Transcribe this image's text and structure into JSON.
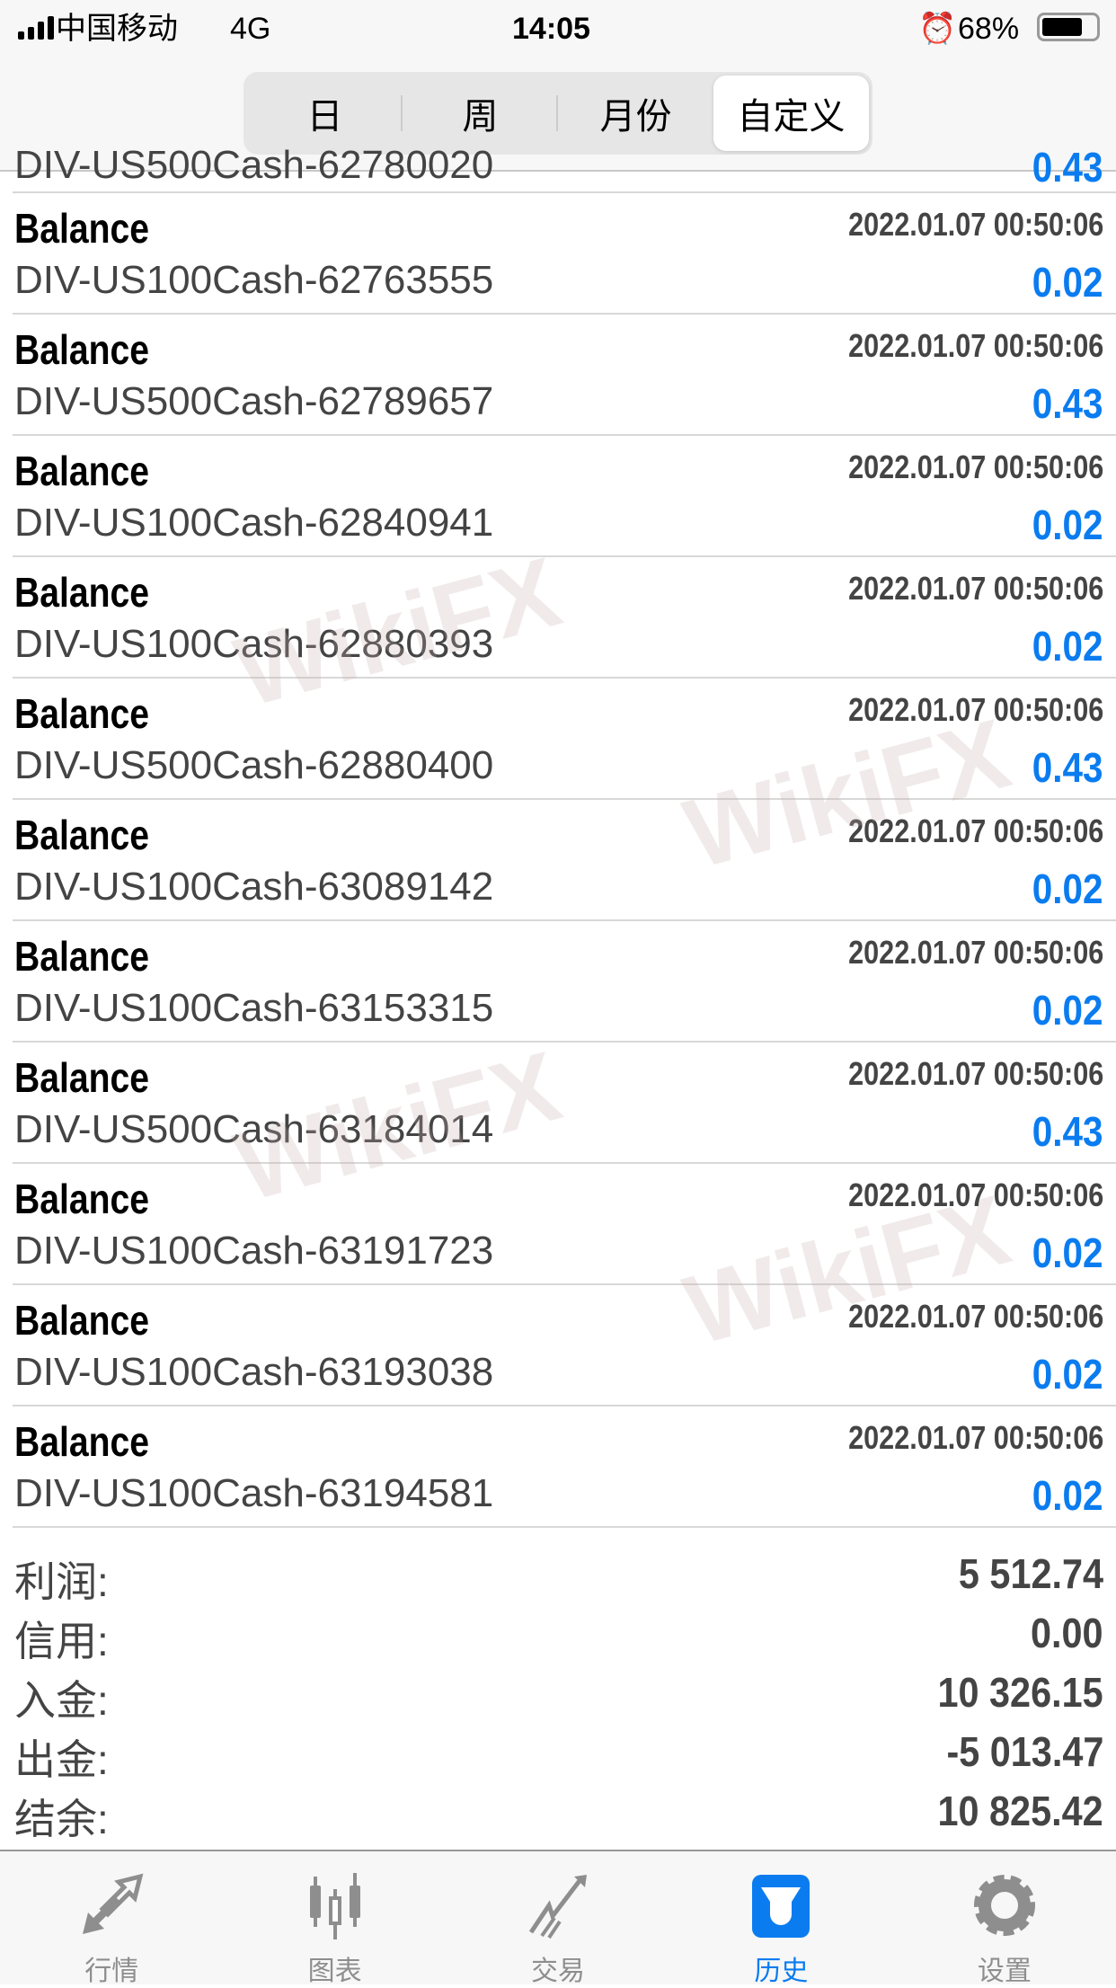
{
  "status_bar": {
    "carrier": "中国移动",
    "network": "4G",
    "time": "14:05",
    "battery": "68%"
  },
  "period_tabs": [
    {
      "label": "日"
    },
    {
      "label": "周"
    },
    {
      "label": "月份"
    },
    {
      "label": "自定义",
      "active": true
    }
  ],
  "partial_row": {
    "symbol": "DIV-US500Cash-62780020",
    "value": "0.43"
  },
  "rows": [
    {
      "type": "Balance",
      "symbol": "DIV-US100Cash-62763555",
      "time": "2022.01.07 00:50:06",
      "value": "0.02"
    },
    {
      "type": "Balance",
      "symbol": "DIV-US500Cash-62789657",
      "time": "2022.01.07 00:50:06",
      "value": "0.43"
    },
    {
      "type": "Balance",
      "symbol": "DIV-US100Cash-62840941",
      "time": "2022.01.07 00:50:06",
      "value": "0.02"
    },
    {
      "type": "Balance",
      "symbol": "DIV-US100Cash-62880393",
      "time": "2022.01.07 00:50:06",
      "value": "0.02"
    },
    {
      "type": "Balance",
      "symbol": "DIV-US500Cash-62880400",
      "time": "2022.01.07 00:50:06",
      "value": "0.43"
    },
    {
      "type": "Balance",
      "symbol": "DIV-US100Cash-63089142",
      "time": "2022.01.07 00:50:06",
      "value": "0.02"
    },
    {
      "type": "Balance",
      "symbol": "DIV-US100Cash-63153315",
      "time": "2022.01.07 00:50:06",
      "value": "0.02"
    },
    {
      "type": "Balance",
      "symbol": "DIV-US500Cash-63184014",
      "time": "2022.01.07 00:50:06",
      "value": "0.43"
    },
    {
      "type": "Balance",
      "symbol": "DIV-US100Cash-63191723",
      "time": "2022.01.07 00:50:06",
      "value": "0.02"
    },
    {
      "type": "Balance",
      "symbol": "DIV-US100Cash-63193038",
      "time": "2022.01.07 00:50:06",
      "value": "0.02"
    },
    {
      "type": "Balance",
      "symbol": "DIV-US100Cash-63194581",
      "time": "2022.01.07 00:50:06",
      "value": "0.02"
    }
  ],
  "summary": [
    {
      "label": "利润:",
      "value": "5 512.74"
    },
    {
      "label": "信用:",
      "value": "0.00"
    },
    {
      "label": "入金:",
      "value": "10 326.15"
    },
    {
      "label": "出金:",
      "value": "-5 013.47"
    },
    {
      "label": "结余:",
      "value": "10 825.42"
    }
  ],
  "tabbar": [
    {
      "label": "行情",
      "icon": "quotes-arrows-icon"
    },
    {
      "label": "图表",
      "icon": "candlestick-chart-icon"
    },
    {
      "label": "交易",
      "icon": "trade-trend-icon"
    },
    {
      "label": "历史",
      "icon": "history-inbox-icon",
      "active": true
    },
    {
      "label": "设置",
      "icon": "settings-gear-icon"
    }
  ],
  "watermark": "WikiFX",
  "colors": {
    "accent": "#0a7cf0",
    "text_gray": "#444444"
  }
}
